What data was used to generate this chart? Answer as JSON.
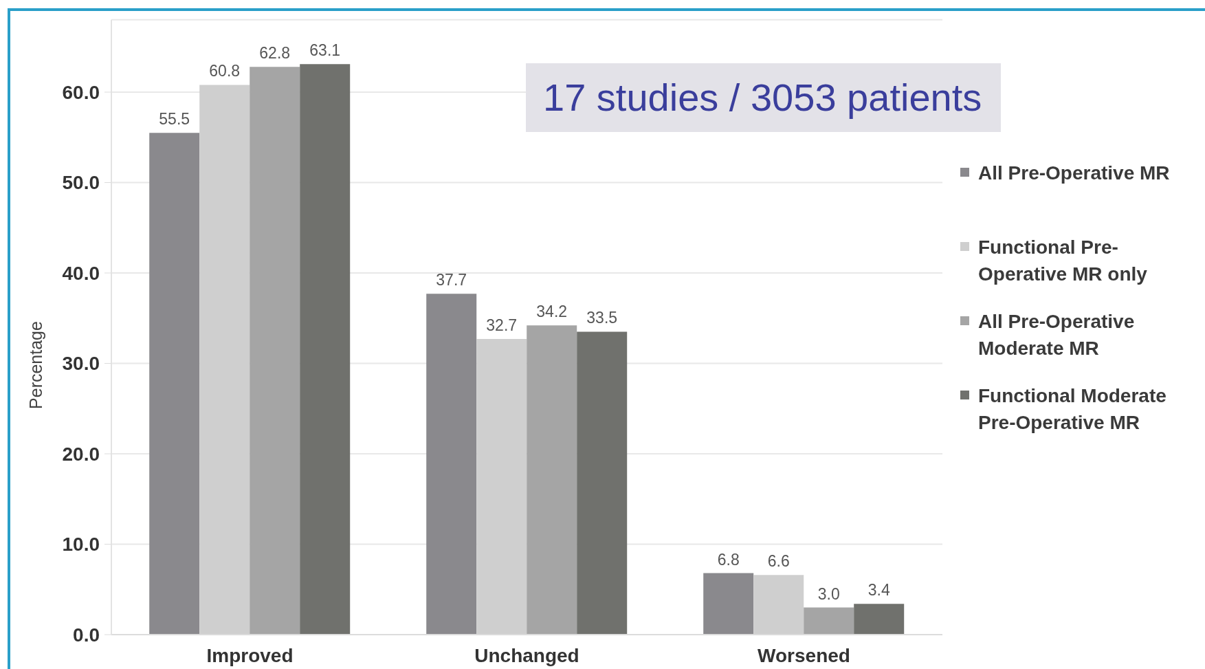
{
  "chart_data": {
    "type": "bar",
    "ylabel": "Percentage",
    "categories": [
      "Improved",
      "Unchanged",
      "Worsened"
    ],
    "series": [
      {
        "name": "All Pre-Operative MR",
        "color": "#8a898d",
        "values": [
          55.5,
          37.7,
          6.8
        ],
        "value_labels": [
          "55.5",
          "37.7",
          "6.8"
        ]
      },
      {
        "name": "Functional Pre-Operative MR only",
        "color": "#cfcfcf",
        "values": [
          60.8,
          32.7,
          6.6
        ],
        "value_labels": [
          "60.8",
          "32.7",
          "6.6"
        ]
      },
      {
        "name": "All Pre-Operative Moderate MR",
        "color": "#a5a5a5",
        "values": [
          62.8,
          34.2,
          3.0
        ],
        "value_labels": [
          "62.8",
          "34.2",
          "3.0"
        ]
      },
      {
        "name": "Functional Moderate Pre-Operative MR",
        "color": "#70716d",
        "values": [
          63.1,
          33.5,
          3.4
        ],
        "value_labels": [
          "63.1",
          "33.5",
          "3.4"
        ]
      }
    ],
    "ylim": [
      0,
      68
    ],
    "yticks": [
      {
        "value": 0,
        "label": "0.0"
      },
      {
        "value": 10,
        "label": "10.0"
      },
      {
        "value": 20,
        "label": "20.0"
      },
      {
        "value": 30,
        "label": "30.0"
      },
      {
        "value": 40,
        "label": "40.0"
      },
      {
        "value": 50,
        "label": "50.0"
      },
      {
        "value": 60,
        "label": "60.0"
      }
    ],
    "grid": "y",
    "legend": "right",
    "annotations": [
      "17 studies / 3053 patients"
    ]
  }
}
